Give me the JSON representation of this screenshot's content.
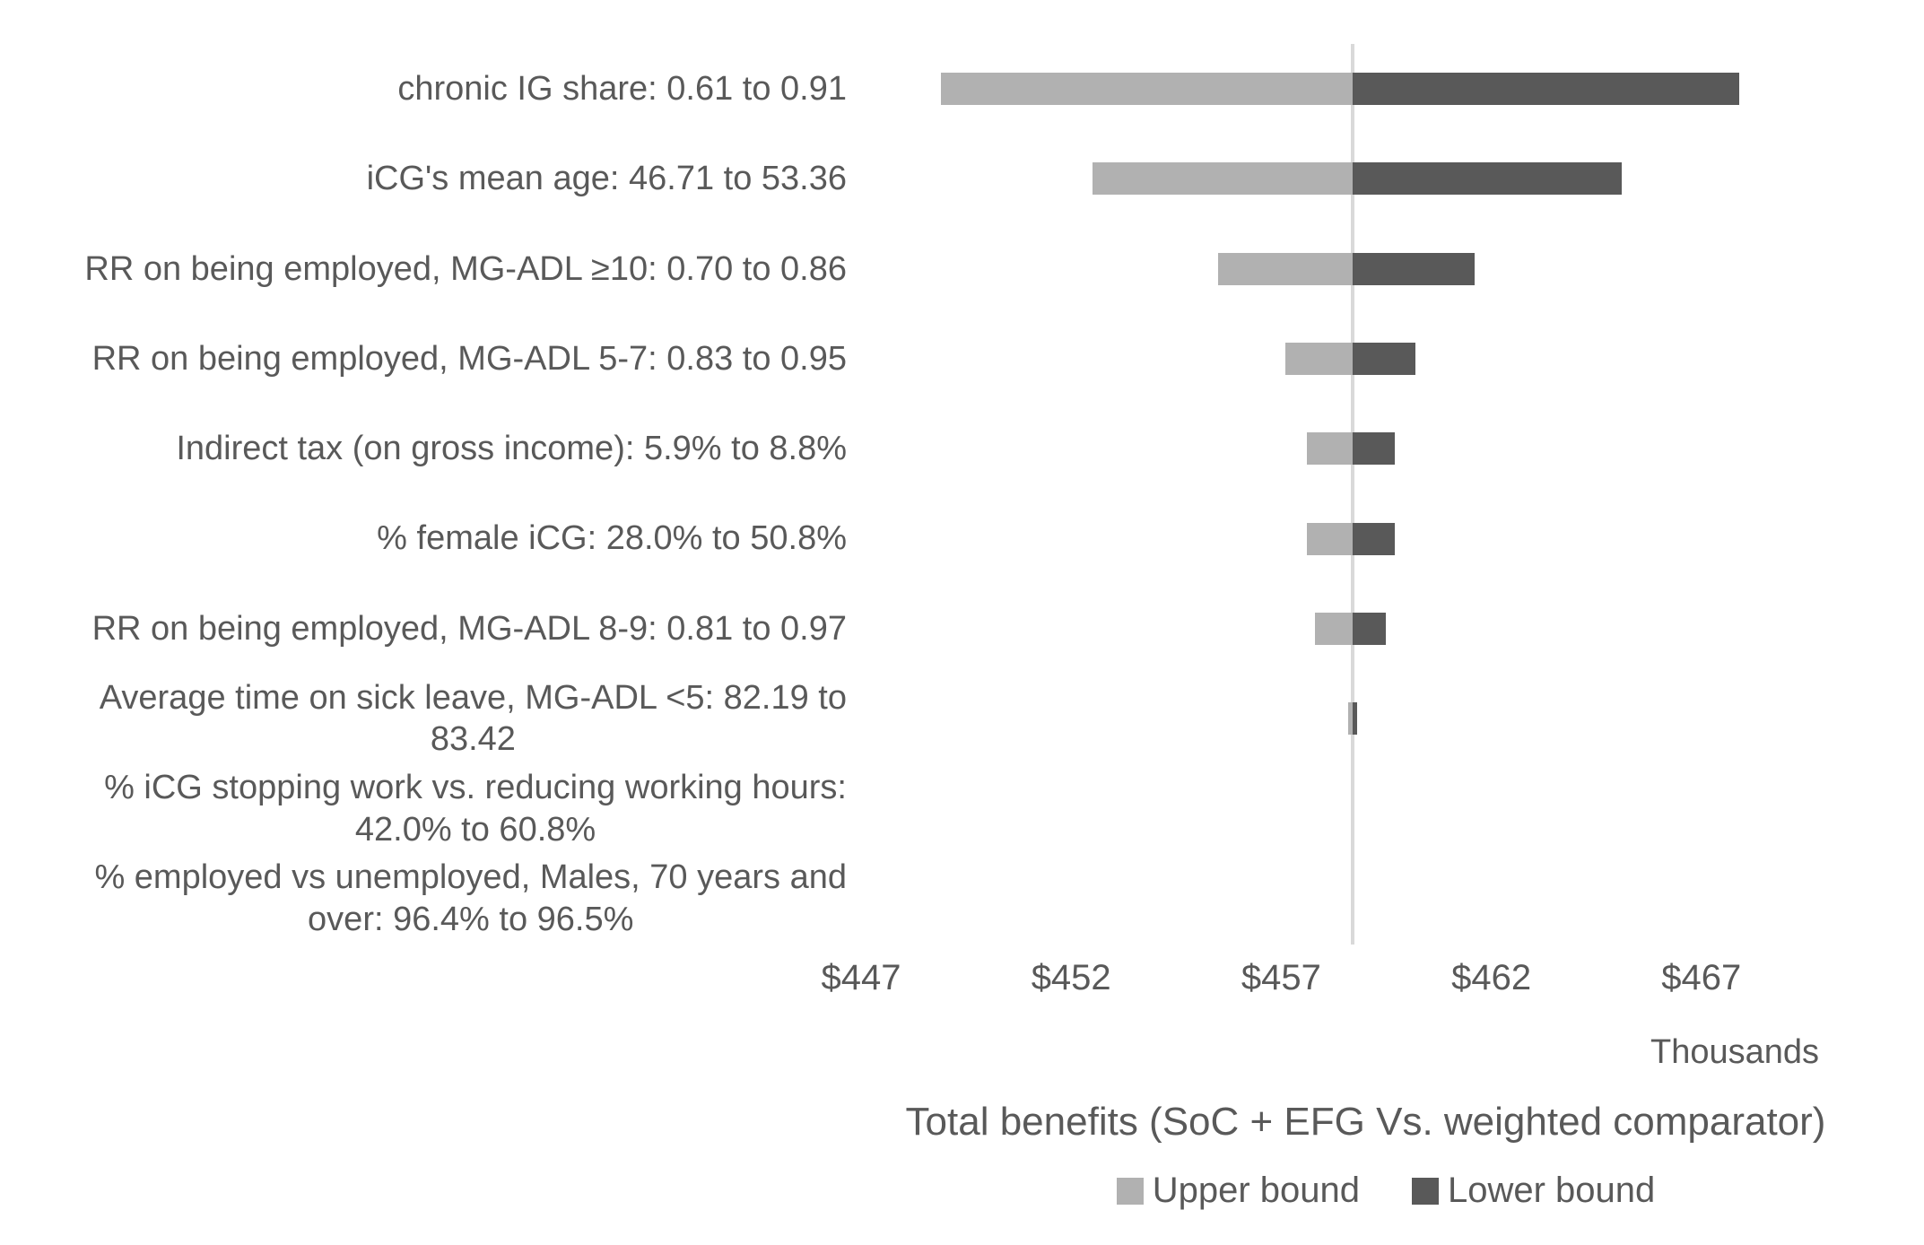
{
  "chart_data": {
    "type": "bar",
    "subtype": "tornado-horizontal-diverging",
    "title": "Total benefits (SoC + EFG Vs. weighted comparator)",
    "unit_label": "Thousands",
    "xlabel": "Total benefits (SoC + EFG Vs. weighted comparator)",
    "x_tick_labels": [
      "$447",
      "$452",
      "$457",
      "$462",
      "$467"
    ],
    "x_ticks": [
      447,
      452,
      457,
      462,
      467
    ],
    "xlim": [
      446.6,
      471.3
    ],
    "baseline_value": 458.7,
    "grid": "single-vertical-baseline",
    "legend_position": "bottom",
    "legend": [
      {
        "name": "Upper bound",
        "color": "#b1b1b1"
      },
      {
        "name": "Lower bound",
        "color": "#595959"
      }
    ],
    "baseline_line_color": "#d9d9d9",
    "text_color": "#595959",
    "categories": [
      "chronic IG share: 0.61 to 0.91",
      "iCG's mean age: 46.71 to 53.36",
      "RR on being employed, MG-ADL ≥10: 0.70 to 0.86",
      "RR on being employed, MG-ADL 5-7: 0.83 to 0.95",
      "Indirect tax (on gross income): 5.9% to 8.8%",
      "% female iCG: 28.0% to 50.8%",
      "RR on being employed, MG-ADL 8-9: 0.81 to 0.97",
      "Average time on sick leave, MG-ADL <5: 82.19 to\n83.42",
      "% iCG  stopping work vs. reducing working hours:\n42.0% to 60.8%",
      "% employed vs unemployed, Males, 70 years and\nover: 96.4% to 96.5%"
    ],
    "series": [
      {
        "name": "Upper bound",
        "values": [
          448.9,
          452.5,
          455.5,
          457.1,
          457.6,
          457.6,
          457.8,
          458.6,
          458.7,
          458.7
        ]
      },
      {
        "name": "Lower bound",
        "values": [
          467.9,
          465.1,
          461.6,
          460.2,
          459.7,
          459.7,
          459.5,
          458.8,
          458.7,
          458.7
        ]
      }
    ]
  }
}
